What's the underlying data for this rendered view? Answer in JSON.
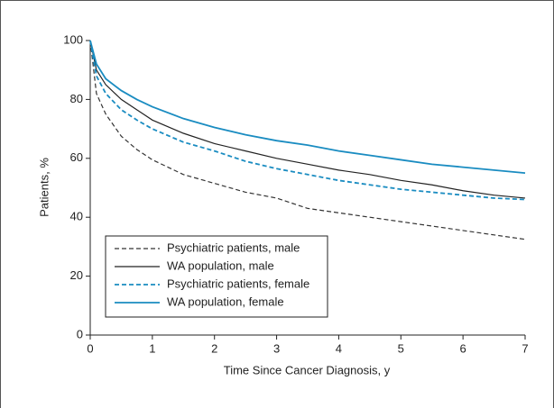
{
  "chart_data": {
    "type": "line",
    "x_label": "Time Since Cancer Diagnosis, y",
    "y_label": "Patients, %",
    "x": [
      0,
      0.1,
      0.25,
      0.5,
      0.75,
      1,
      1.5,
      2,
      2.5,
      3,
      3.5,
      4,
      4.5,
      5,
      5.5,
      6,
      6.5,
      7
    ],
    "series": [
      {
        "name": "Psychiatric patients, male",
        "color": "#333333",
        "dashed": true,
        "values": [
          100,
          82,
          75,
          67.5,
          63,
          59.5,
          54.5,
          51.5,
          48.5,
          46.5,
          43,
          41.5,
          40,
          38.5,
          37,
          35.5,
          34,
          32.5
        ]
      },
      {
        "name": "WA population, male",
        "color": "#222222",
        "dashed": false,
        "values": [
          100,
          90,
          85,
          80,
          76.5,
          73,
          68.5,
          65,
          62.5,
          60,
          58,
          56,
          54.5,
          52.5,
          51,
          49,
          47.5,
          46.5
        ]
      },
      {
        "name": "Psychiatric patients, female",
        "color": "#1a8cc1",
        "dashed": true,
        "values": [
          100,
          88,
          82,
          76.5,
          73,
          70,
          65.5,
          62.5,
          59,
          56.5,
          54.5,
          52.5,
          51,
          49.5,
          48.5,
          47.5,
          46.5,
          46
        ]
      },
      {
        "name": "WA population, female",
        "color": "#1a8cc1",
        "dashed": false,
        "values": [
          100,
          92,
          87,
          83,
          80,
          77.5,
          73.5,
          70.5,
          68,
          66,
          64.5,
          62.5,
          61,
          59.5,
          58,
          57,
          56,
          55
        ]
      }
    ],
    "xlim": [
      0,
      7
    ],
    "xticks": [
      0,
      1,
      2,
      3,
      4,
      5,
      6,
      7
    ],
    "ylim": [
      0,
      100
    ],
    "yticks": [
      0,
      20,
      40,
      60,
      80,
      100
    ],
    "grid": false,
    "legend": "lower left"
  }
}
